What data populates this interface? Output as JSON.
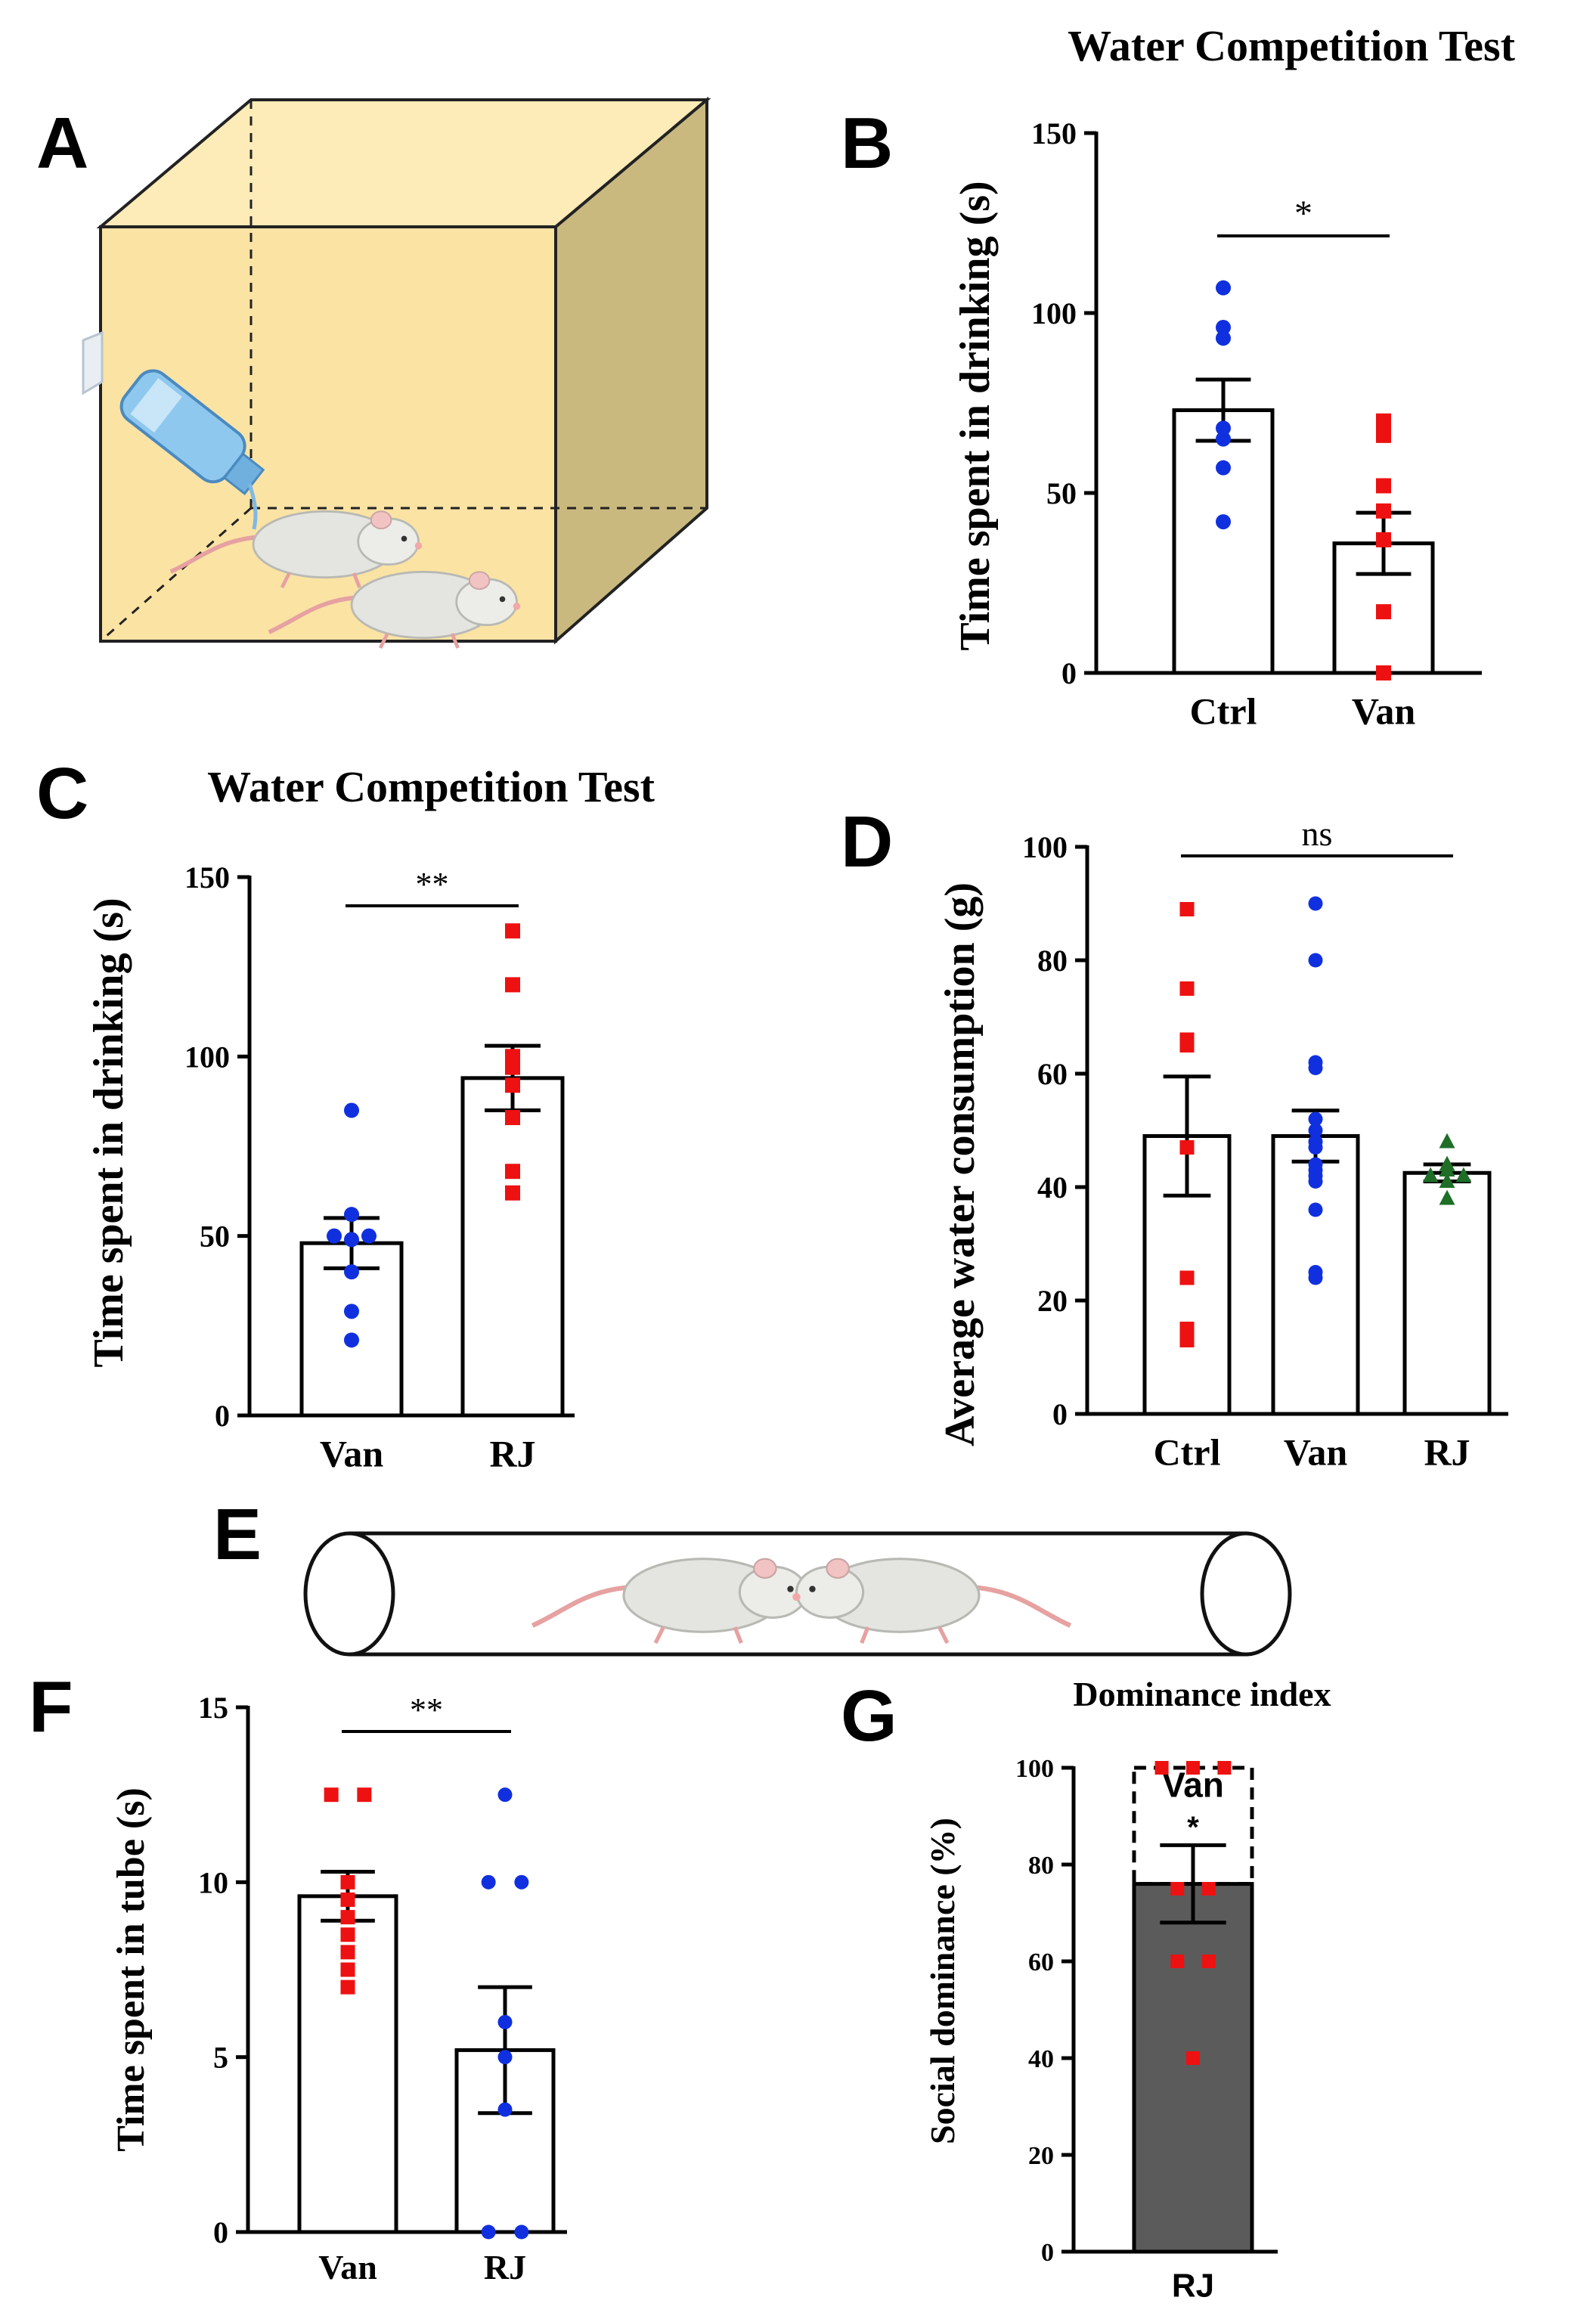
{
  "colors": {
    "red": "#ee1111",
    "blue": "#1030e0",
    "green": "#1e6e28",
    "dark_bar": "#5b5b5b",
    "box_face": "#fbe3a4",
    "box_side": "#cab97f",
    "box_top": "#fdebb8"
  },
  "panels": {
    "A": {
      "label": "A",
      "icons": [
        "cage-box-icon",
        "water-bottle-icon",
        "rat-icon"
      ]
    },
    "E": {
      "label": "E",
      "icons": [
        "tube-icon",
        "rat-icon"
      ]
    }
  },
  "chart_data": [
    {
      "id": "B",
      "panel_label": "B",
      "type": "bar",
      "title": "Water Competition Test",
      "ylabel": "Time spent in drinking (s)",
      "xlabel": "",
      "ylim": [
        0,
        150
      ],
      "yticks": [
        0,
        50,
        100,
        150
      ],
      "categories": [
        "Ctrl",
        "Van"
      ],
      "means": [
        73,
        36
      ],
      "sem": [
        8.5,
        8.5
      ],
      "points": [
        [
          107,
          96,
          93,
          68,
          65,
          57,
          42
        ],
        [
          70,
          66,
          52,
          45,
          37,
          17,
          0
        ]
      ],
      "point_colors": [
        "blue",
        "red"
      ],
      "point_shapes": [
        "circle",
        "square"
      ],
      "significance": [
        {
          "from": 0,
          "to": 1,
          "label": "*"
        }
      ]
    },
    {
      "id": "C",
      "panel_label": "C",
      "type": "bar",
      "title": "Water Competition Test",
      "ylabel": "Time spent in drinking (s)",
      "xlabel": "",
      "ylim": [
        0,
        150
      ],
      "yticks": [
        0,
        50,
        100,
        150
      ],
      "categories": [
        "Van",
        "RJ"
      ],
      "means": [
        48,
        94
      ],
      "sem": [
        7,
        9
      ],
      "points": [
        [
          85,
          56,
          50,
          50,
          49,
          40,
          29,
          21
        ],
        [
          135,
          120,
          100,
          97,
          92,
          83,
          68,
          62
        ]
      ],
      "point_colors": [
        "blue",
        "red"
      ],
      "point_shapes": [
        "circle",
        "square"
      ],
      "significance": [
        {
          "from": 0,
          "to": 1,
          "label": "**"
        }
      ]
    },
    {
      "id": "D",
      "panel_label": "D",
      "type": "bar",
      "title": "",
      "ylabel": "Average water consumption (g)",
      "xlabel": "",
      "ylim": [
        0,
        100
      ],
      "yticks": [
        0,
        20,
        40,
        60,
        80,
        100
      ],
      "categories": [
        "Ctrl",
        "Van",
        "RJ"
      ],
      "means": [
        49,
        49,
        42.5
      ],
      "sem": [
        10.5,
        4.5,
        1.5
      ],
      "points": [
        [
          89,
          75,
          66,
          65,
          47,
          24,
          15,
          13
        ],
        [
          90,
          80,
          62,
          61,
          52,
          50,
          48,
          47,
          44,
          43,
          42,
          41,
          36,
          25,
          24
        ],
        [
          48,
          44,
          43,
          42,
          42,
          41,
          38
        ]
      ],
      "point_colors": [
        "red",
        "blue",
        "green"
      ],
      "point_shapes": [
        "square",
        "circle",
        "triangle"
      ],
      "significance": [
        {
          "from": 0,
          "to": 2,
          "label": "ns"
        }
      ]
    },
    {
      "id": "F",
      "panel_label": "F",
      "type": "bar",
      "title": "",
      "ylabel": "Time spent in tube (s)",
      "xlabel": "",
      "ylim": [
        0,
        15
      ],
      "yticks": [
        0,
        5,
        10,
        15
      ],
      "categories": [
        "Van",
        "RJ"
      ],
      "means": [
        9.6,
        5.2
      ],
      "sem": [
        0.7,
        1.8
      ],
      "points": [
        [
          12.5,
          12.5,
          10,
          9.5,
          9,
          8.5,
          8,
          7.5,
          7
        ],
        [
          12.5,
          10,
          10,
          6,
          5,
          3.5,
          0,
          0
        ]
      ],
      "point_colors": [
        "red",
        "blue"
      ],
      "point_shapes": [
        "square",
        "circle"
      ],
      "significance": [
        {
          "from": 0,
          "to": 1,
          "label": "**"
        }
      ]
    },
    {
      "id": "G",
      "panel_label": "G",
      "type": "bar",
      "title": "Dominance index",
      "ylabel": "Social dominance (%)",
      "xlabel": "",
      "ylim": [
        0,
        100
      ],
      "yticks": [
        0,
        20,
        40,
        60,
        80,
        100
      ],
      "categories": [
        "RJ"
      ],
      "means": [
        76
      ],
      "sem": [
        8
      ],
      "points": [
        [
          100,
          100,
          100,
          75,
          75,
          60,
          60,
          40
        ]
      ],
      "point_colors": [
        "red"
      ],
      "point_shapes": [
        "square"
      ],
      "stacked_remainder_label": "Van",
      "significance": [
        {
          "label": "*"
        }
      ]
    }
  ]
}
